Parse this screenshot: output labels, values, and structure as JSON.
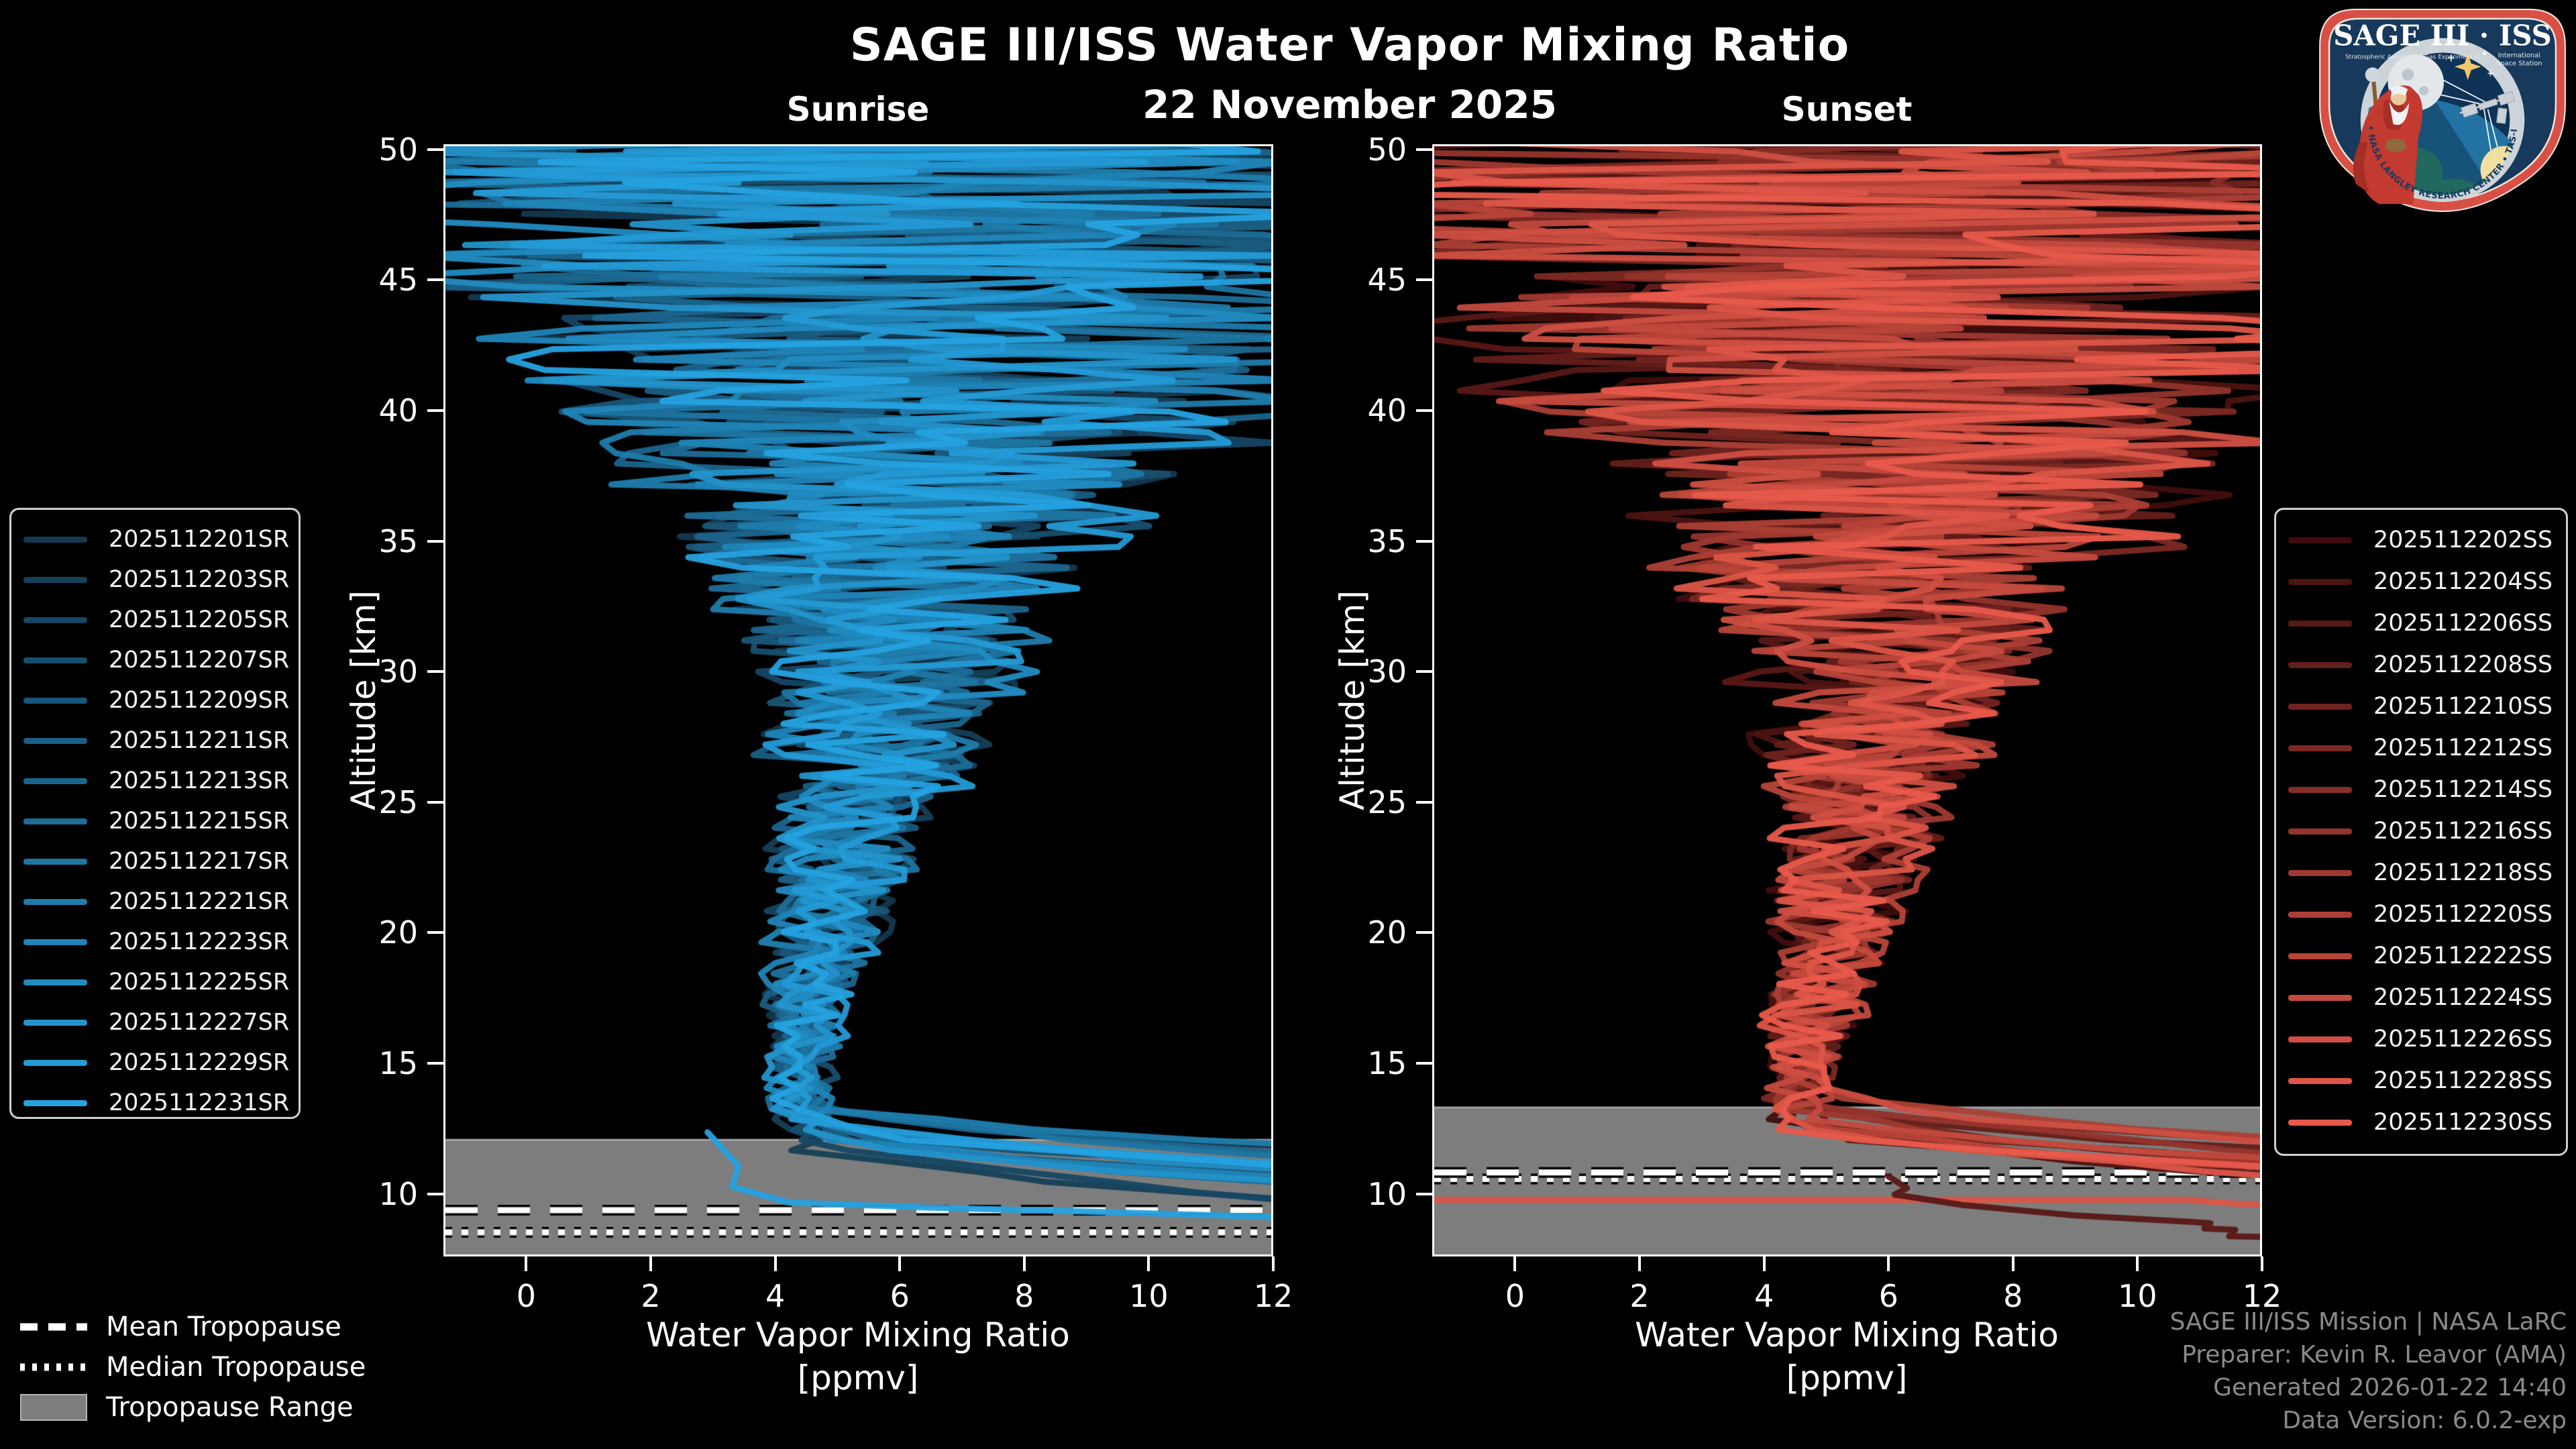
{
  "header": {
    "title": "SAGE III/ISS Water Vapor Mixing Ratio",
    "subtitle": "22 November 2025",
    "panel_titles": {
      "sunrise": "Sunrise",
      "sunset": "Sunset"
    }
  },
  "footer": {
    "lines": [
      "SAGE III/ISS Mission | NASA LaRC",
      "Preparer: Kevin R. Leavor (AMA)",
      "Generated 2026-01-22 14:40",
      "Data Version: 6.0.2-exp"
    ]
  },
  "tropopause_legend": {
    "mean_label": "Mean Tropopause",
    "median_label": "Median Tropopause",
    "range_label": "Tropopause Range"
  },
  "logo": {
    "title": "SAGE III · ISS",
    "subtitle_left": "Stratospheric Aerosol and Gas Experiment III",
    "subtitle_right_1": "International",
    "subtitle_right_2": "Space Station",
    "rim_text": "BALL  •  NASA LANGLEY RESEARCH CENTER  •  TAS-I  •  ESA"
  },
  "colors": {
    "background": "#000000",
    "text": "#ffffff",
    "footer_text": "#8a8a8a",
    "band_gray": "#7d7d7d",
    "band_edge": "#a2a2a8",
    "spine": "#ffffff",
    "legend_border": "#cfcfcf"
  },
  "chart_data": [
    {
      "type": "line",
      "panel": "sunrise",
      "title": "Sunrise",
      "xlabel_line1": "Water Vapor Mixing Ratio",
      "xlabel_line2": "[ppmv]",
      "ylabel": "Altitude [km]",
      "xlim": [
        -1.33,
        12
      ],
      "ylim": [
        7.6,
        50.2
      ],
      "xticks": [
        0,
        2,
        4,
        6,
        8,
        10,
        12
      ],
      "yticks": [
        10,
        15,
        20,
        25,
        30,
        35,
        40,
        45,
        50
      ],
      "color_gradient": [
        "#14384f",
        "#25a2e0"
      ],
      "labels": [
        "2025112201SR",
        "2025112203SR",
        "2025112205SR",
        "2025112207SR",
        "2025112209SR",
        "2025112211SR",
        "2025112213SR",
        "2025112215SR",
        "2025112217SR",
        "2025112221SR",
        "2025112223SR",
        "2025112225SR",
        "2025112227SR",
        "2025112229SR",
        "2025112231SR"
      ],
      "profile_envelope": {
        "altitudes": [
          7.6,
          9,
          10,
          11,
          12,
          13,
          14,
          16,
          18,
          20,
          24,
          28,
          32,
          36,
          40,
          44,
          47,
          50.2
        ],
        "center_ppmv": [
          4.6,
          4.6,
          4.5,
          4.4,
          4.4,
          4.4,
          4.4,
          4.5,
          4.6,
          4.8,
          5.3,
          5.7,
          6.0,
          6.2,
          6.3,
          6.0,
          5.8,
          5.5
        ],
        "spread_ppmv": [
          0.5,
          0.5,
          0.5,
          0.45,
          0.4,
          0.4,
          0.4,
          0.5,
          0.6,
          0.7,
          1.0,
          1.5,
          2.2,
          3.2,
          4.5,
          6.0,
          7.0,
          7.5
        ]
      },
      "exit_alt_range_km": [
        11.7,
        13.7
      ],
      "tropopause": {
        "mean_km": 9.3,
        "median_km": 8.45,
        "range_top_km": 12.0,
        "range_bottom_km": 7.6
      },
      "extra_segments": [
        {
          "color_index": 14,
          "points_xa": [
            [
              2.9,
              12.3
            ],
            [
              3.4,
              11.0
            ],
            [
              3.3,
              10.2
            ],
            [
              4.2,
              9.6
            ],
            [
              6.5,
              9.4
            ],
            [
              9.0,
              9.25
            ],
            [
              12.6,
              9.0
            ]
          ]
        }
      ],
      "seed": 3
    },
    {
      "type": "line",
      "panel": "sunset",
      "title": "Sunset",
      "xlabel_line1": "Water Vapor Mixing Ratio",
      "xlabel_line2": "[ppmv]",
      "ylabel": "Altitude [km]",
      "xlim": [
        -1.33,
        12
      ],
      "ylim": [
        7.6,
        50.2
      ],
      "xticks": [
        0,
        2,
        4,
        6,
        8,
        10,
        12
      ],
      "yticks": [
        10,
        15,
        20,
        25,
        30,
        35,
        40,
        45,
        50
      ],
      "color_gradient": [
        "#400d0d",
        "#e85a4b"
      ],
      "labels": [
        "2025112202SS",
        "2025112204SS",
        "2025112206SS",
        "2025112208SS",
        "2025112210SS",
        "2025112212SS",
        "2025112214SS",
        "2025112216SS",
        "2025112218SS",
        "2025112220SS",
        "2025112222SS",
        "2025112224SS",
        "2025112226SS",
        "2025112228SS",
        "2025112230SS"
      ],
      "profile_envelope": {
        "altitudes": [
          7.6,
          9,
          10,
          11,
          12,
          13,
          14,
          16,
          18,
          20,
          24,
          28,
          32,
          36,
          40,
          44,
          47,
          50.2
        ],
        "center_ppmv": [
          4.8,
          4.8,
          4.7,
          4.6,
          4.5,
          4.5,
          4.5,
          4.7,
          4.9,
          5.1,
          5.5,
          5.8,
          6.1,
          6.3,
          6.4,
          6.2,
          6.0,
          5.8
        ],
        "spread_ppmv": [
          0.5,
          0.5,
          0.5,
          0.45,
          0.4,
          0.4,
          0.45,
          0.6,
          0.7,
          0.8,
          1.1,
          1.6,
          2.3,
          3.4,
          4.8,
          6.2,
          7.0,
          7.5
        ]
      },
      "exit_alt_range_km": [
        12.3,
        14.3
      ],
      "tropopause": {
        "mean_km": 10.75,
        "median_km": 10.5,
        "range_top_km": 13.25,
        "range_bottom_km": 7.6
      },
      "extra_segments": [
        {
          "color_index": 13,
          "points_xa": [
            [
              -1.4,
              9.7
            ],
            [
              10.8,
              9.7
            ],
            [
              11.6,
              9.55
            ],
            [
              12.6,
              9.5
            ]
          ]
        },
        {
          "color_index": 2,
          "points_xa": [
            [
              6.0,
              10.6
            ],
            [
              6.3,
              10.15
            ],
            [
              6.1,
              9.9
            ],
            [
              7.2,
              9.5
            ],
            [
              9.0,
              9.1
            ],
            [
              10.9,
              8.85
            ],
            [
              11.2,
              8.8
            ],
            [
              11.1,
              8.6
            ],
            [
              11.6,
              8.55
            ],
            [
              11.5,
              8.3
            ],
            [
              12.6,
              8.25
            ]
          ]
        }
      ],
      "seed": 11
    }
  ]
}
